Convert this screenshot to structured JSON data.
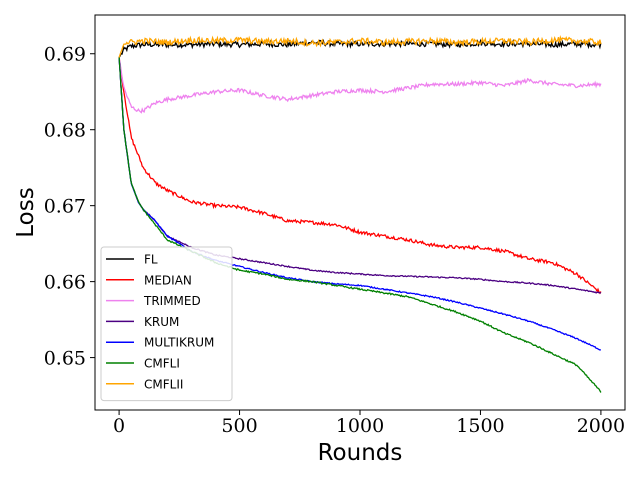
{
  "chart_data": {
    "type": "line",
    "title": "",
    "xlabel": "Rounds",
    "ylabel": "Loss",
    "xlim": [
      -100,
      2100
    ],
    "ylim": [
      0.6431,
      0.6951
    ],
    "xticks": [
      0,
      500,
      1000,
      1500,
      2000
    ],
    "xtick_labels": [
      "0",
      "500",
      "1000",
      "1500",
      "2000"
    ],
    "yticks": [
      0.65,
      0.66,
      0.67,
      0.68,
      0.69
    ],
    "ytick_labels": [
      "0.65",
      "0.66",
      "0.67",
      "0.68",
      "0.69"
    ],
    "grid": false,
    "legend_position": "lower-left",
    "series": [
      {
        "name": "FL",
        "color": "#000000",
        "x": [
          0,
          20,
          50,
          100,
          200,
          300,
          400,
          500,
          600,
          700,
          800,
          900,
          1000,
          1100,
          1200,
          1300,
          1400,
          1500,
          1600,
          1700,
          1800,
          1900,
          2000
        ],
        "y": [
          0.6895,
          0.6905,
          0.691,
          0.6912,
          0.6912,
          0.6912,
          0.6913,
          0.6912,
          0.6913,
          0.6912,
          0.6915,
          0.6913,
          0.6913,
          0.6913,
          0.6913,
          0.6913,
          0.6912,
          0.6914,
          0.6913,
          0.6913,
          0.6912,
          0.6913,
          0.6912
        ]
      },
      {
        "name": "MEDIAN",
        "color": "#ff0000",
        "x": [
          0,
          20,
          50,
          100,
          150,
          200,
          300,
          400,
          500,
          600,
          700,
          800,
          900,
          1000,
          1100,
          1200,
          1300,
          1400,
          1450,
          1500,
          1600,
          1700,
          1800,
          1900,
          2000
        ],
        "y": [
          0.6895,
          0.685,
          0.679,
          0.675,
          0.673,
          0.672,
          0.6705,
          0.67,
          0.6698,
          0.669,
          0.668,
          0.6678,
          0.6675,
          0.6665,
          0.666,
          0.6655,
          0.6648,
          0.6645,
          0.6645,
          0.6645,
          0.664,
          0.663,
          0.6625,
          0.661,
          0.6585
        ]
      },
      {
        "name": "TRIMMED",
        "color": "#ee82ee",
        "x": [
          0,
          20,
          50,
          80,
          100,
          150,
          200,
          300,
          400,
          500,
          600,
          700,
          800,
          900,
          1000,
          1100,
          1200,
          1300,
          1400,
          1500,
          1600,
          1700,
          1800,
          1900,
          2000
        ],
        "y": [
          0.6895,
          0.6855,
          0.683,
          0.6825,
          0.6825,
          0.6835,
          0.684,
          0.6845,
          0.685,
          0.6852,
          0.6845,
          0.684,
          0.6845,
          0.685,
          0.6852,
          0.685,
          0.6855,
          0.686,
          0.686,
          0.6862,
          0.6858,
          0.6865,
          0.686,
          0.6858,
          0.686
        ]
      },
      {
        "name": "KRUM",
        "color": "#4b0082",
        "x": [
          0,
          20,
          50,
          80,
          100,
          150,
          200,
          300,
          400,
          500,
          600,
          700,
          800,
          900,
          1000,
          1100,
          1200,
          1300,
          1400,
          1500,
          1600,
          1700,
          1800,
          1900,
          2000
        ],
        "y": [
          0.6895,
          0.68,
          0.673,
          0.6705,
          0.6695,
          0.668,
          0.666,
          0.6645,
          0.6635,
          0.663,
          0.6625,
          0.662,
          0.6615,
          0.6612,
          0.661,
          0.6608,
          0.6607,
          0.6606,
          0.6605,
          0.6603,
          0.66,
          0.6598,
          0.6595,
          0.659,
          0.6585
        ]
      },
      {
        "name": "MULTIKRUM",
        "color": "#0000ff",
        "x": [
          0,
          20,
          50,
          80,
          100,
          150,
          200,
          300,
          400,
          500,
          600,
          700,
          800,
          900,
          1000,
          1100,
          1200,
          1300,
          1400,
          1500,
          1600,
          1700,
          1800,
          1900,
          2000
        ],
        "y": [
          0.6895,
          0.68,
          0.673,
          0.6705,
          0.6695,
          0.668,
          0.666,
          0.664,
          0.6628,
          0.662,
          0.6612,
          0.6605,
          0.66,
          0.6597,
          0.6595,
          0.659,
          0.6585,
          0.658,
          0.6573,
          0.6565,
          0.6557,
          0.6548,
          0.6537,
          0.6525,
          0.651
        ]
      },
      {
        "name": "CMFLI",
        "color": "#008000",
        "x": [
          0,
          20,
          50,
          80,
          100,
          150,
          200,
          300,
          400,
          500,
          600,
          700,
          800,
          900,
          1000,
          1100,
          1200,
          1300,
          1400,
          1500,
          1600,
          1700,
          1800,
          1900,
          2000
        ],
        "y": [
          0.6895,
          0.68,
          0.673,
          0.6705,
          0.6695,
          0.6675,
          0.6655,
          0.664,
          0.6625,
          0.6615,
          0.661,
          0.6603,
          0.66,
          0.6595,
          0.659,
          0.6585,
          0.658,
          0.657,
          0.656,
          0.6548,
          0.6532,
          0.652,
          0.6505,
          0.649,
          0.6455
        ]
      },
      {
        "name": "CMFLII",
        "color": "#ffa500",
        "x": [
          0,
          20,
          50,
          100,
          200,
          300,
          400,
          500,
          600,
          700,
          800,
          900,
          1000,
          1100,
          1200,
          1300,
          1400,
          1500,
          1600,
          1700,
          1800,
          1900,
          2000
        ],
        "y": [
          0.6895,
          0.6915,
          0.6915,
          0.6917,
          0.6915,
          0.6918,
          0.6917,
          0.6918,
          0.6916,
          0.6917,
          0.6914,
          0.6915,
          0.6917,
          0.6915,
          0.6916,
          0.6917,
          0.6915,
          0.6916,
          0.6917,
          0.6915,
          0.6918,
          0.6917,
          0.6915
        ]
      }
    ]
  }
}
